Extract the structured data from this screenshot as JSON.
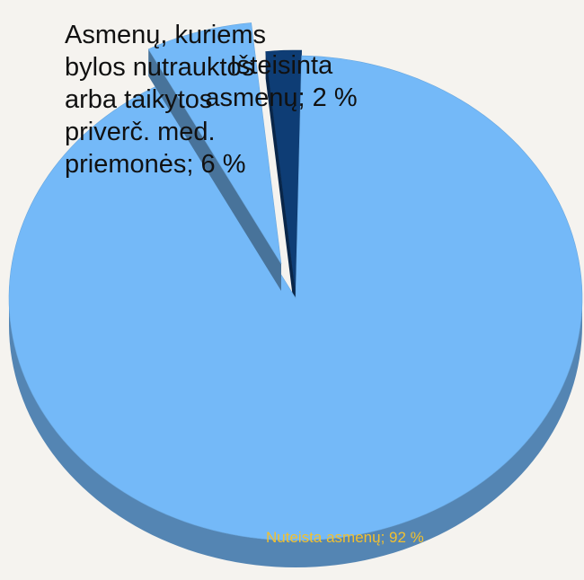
{
  "chart_data": {
    "type": "pie",
    "values": [
      2,
      92,
      6
    ],
    "value_labels": [
      "Išteisinta\nasmenų; 2 %",
      "Nuteista asmenų; 92 %",
      "Asmenų, kuriems\nbylos nutrauktos\narba taikytos\npriverč. med.\npriemonės; 6 %"
    ],
    "colors": [
      "#0e3d75",
      "#74b9f8",
      "#74b9f8"
    ],
    "label_colors": [
      "#111111",
      "#f2c02f",
      "#111111"
    ]
  }
}
